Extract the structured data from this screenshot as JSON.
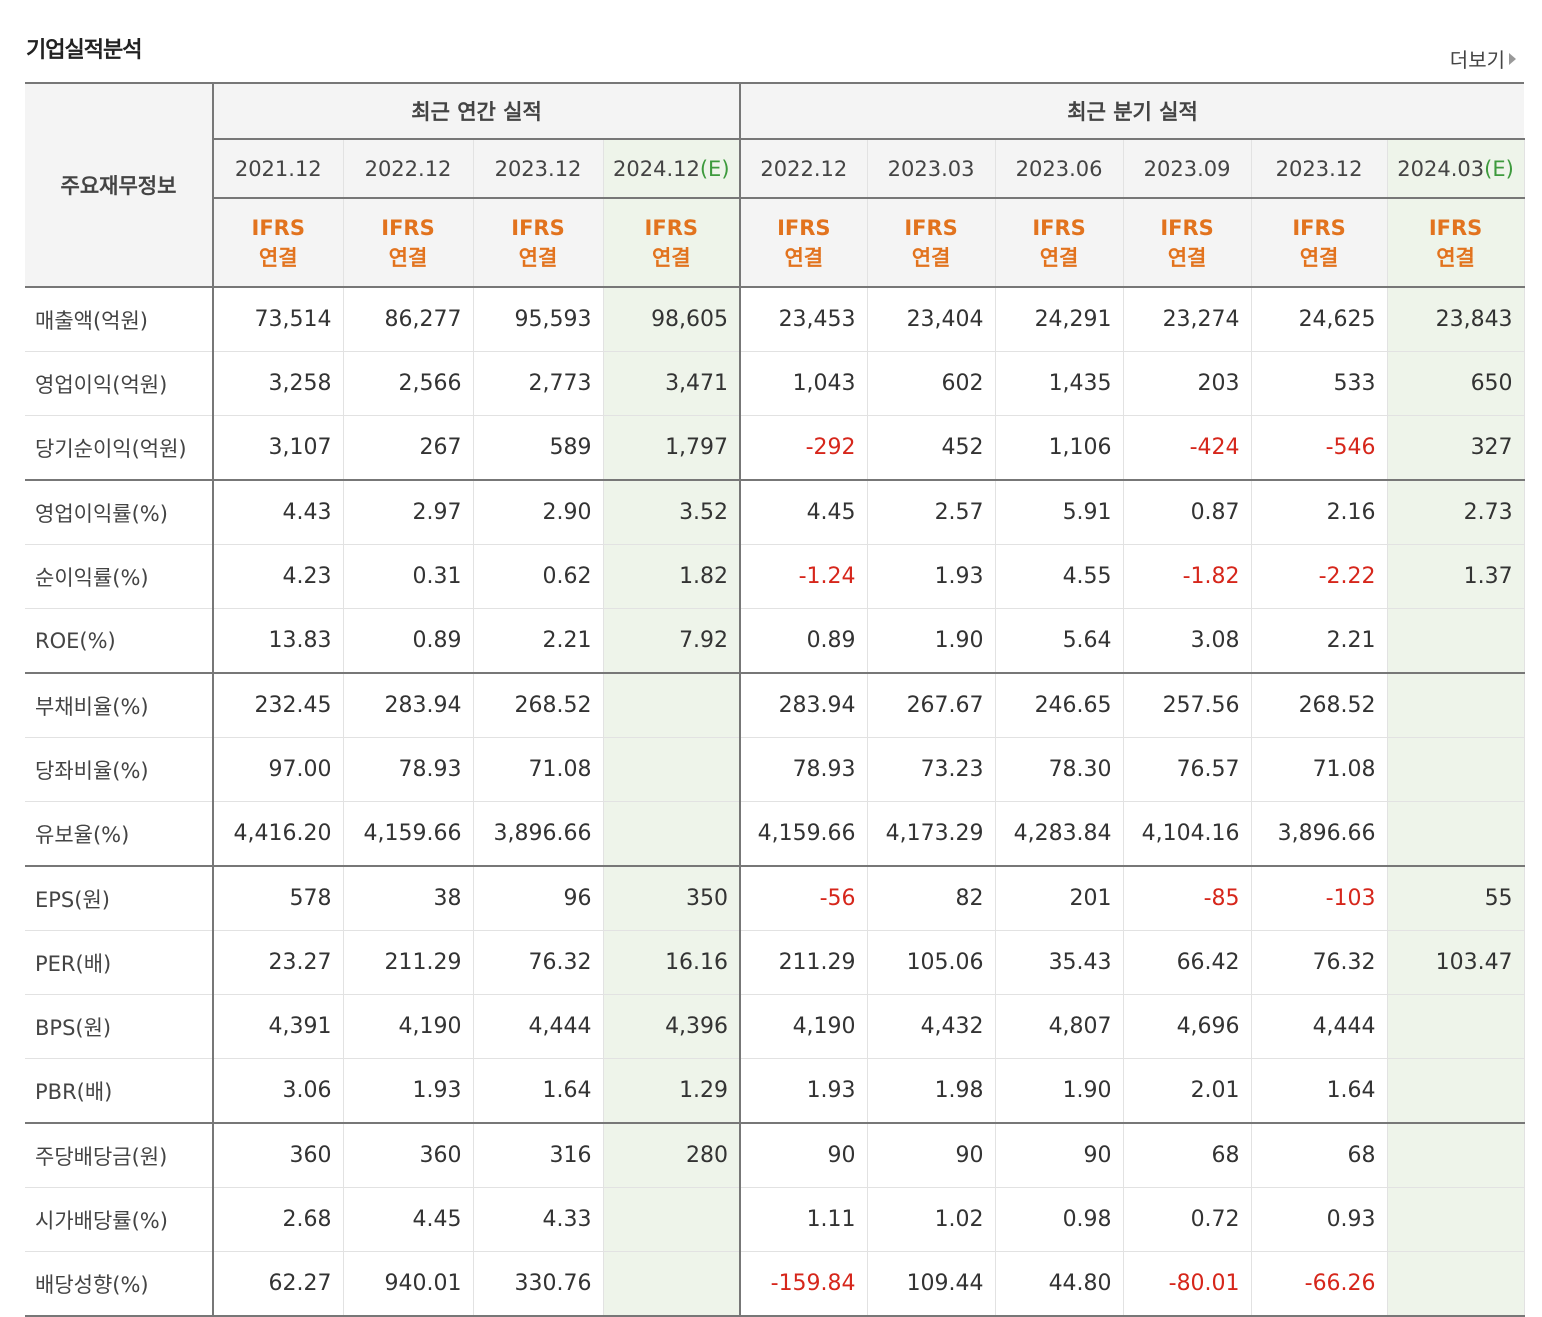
{
  "title": "기업실적분석",
  "more_label": "더보기",
  "header": {
    "row_label": "주요재무정보",
    "annual_group": "최근 연간 실적",
    "quarter_group": "최근 분기 실적",
    "estimate_mark": "(E)",
    "ifrs_line1": "IFRS",
    "ifrs_line2": "연결",
    "annual_periods": [
      {
        "period": "2021.12",
        "estimate": false
      },
      {
        "period": "2022.12",
        "estimate": false
      },
      {
        "period": "2023.12",
        "estimate": false
      },
      {
        "period": "2024.12",
        "estimate": true
      }
    ],
    "quarter_periods": [
      {
        "period": "2022.12",
        "estimate": false
      },
      {
        "period": "2023.03",
        "estimate": false
      },
      {
        "period": "2023.06",
        "estimate": false
      },
      {
        "period": "2023.09",
        "estimate": false
      },
      {
        "period": "2023.12",
        "estimate": false
      },
      {
        "period": "2024.03",
        "estimate": true
      }
    ]
  },
  "rows": [
    {
      "label": "매출액(억원)",
      "values": [
        "73,514",
        "86,277",
        "95,593",
        "98,605",
        "23,453",
        "23,404",
        "24,291",
        "23,274",
        "24,625",
        "23,843"
      ],
      "group_end": false
    },
    {
      "label": "영업이익(억원)",
      "values": [
        "3,258",
        "2,566",
        "2,773",
        "3,471",
        "1,043",
        "602",
        "1,435",
        "203",
        "533",
        "650"
      ],
      "group_end": false
    },
    {
      "label": "당기순이익(억원)",
      "values": [
        "3,107",
        "267",
        "589",
        "1,797",
        "-292",
        "452",
        "1,106",
        "-424",
        "-546",
        "327"
      ],
      "group_end": true
    },
    {
      "label": "영업이익률(%)",
      "values": [
        "4.43",
        "2.97",
        "2.90",
        "3.52",
        "4.45",
        "2.57",
        "5.91",
        "0.87",
        "2.16",
        "2.73"
      ],
      "group_end": false
    },
    {
      "label": "순이익률(%)",
      "values": [
        "4.23",
        "0.31",
        "0.62",
        "1.82",
        "-1.24",
        "1.93",
        "4.55",
        "-1.82",
        "-2.22",
        "1.37"
      ],
      "group_end": false
    },
    {
      "label": "ROE(%)",
      "values": [
        "13.83",
        "0.89",
        "2.21",
        "7.92",
        "0.89",
        "1.90",
        "5.64",
        "3.08",
        "2.21",
        ""
      ],
      "group_end": true
    },
    {
      "label": "부채비율(%)",
      "values": [
        "232.45",
        "283.94",
        "268.52",
        "",
        "283.94",
        "267.67",
        "246.65",
        "257.56",
        "268.52",
        ""
      ],
      "group_end": false
    },
    {
      "label": "당좌비율(%)",
      "values": [
        "97.00",
        "78.93",
        "71.08",
        "",
        "78.93",
        "73.23",
        "78.30",
        "76.57",
        "71.08",
        ""
      ],
      "group_end": false
    },
    {
      "label": "유보율(%)",
      "values": [
        "4,416.20",
        "4,159.66",
        "3,896.66",
        "",
        "4,159.66",
        "4,173.29",
        "4,283.84",
        "4,104.16",
        "3,896.66",
        ""
      ],
      "group_end": true
    },
    {
      "label": "EPS(원)",
      "values": [
        "578",
        "38",
        "96",
        "350",
        "-56",
        "82",
        "201",
        "-85",
        "-103",
        "55"
      ],
      "group_end": false
    },
    {
      "label": "PER(배)",
      "values": [
        "23.27",
        "211.29",
        "76.32",
        "16.16",
        "211.29",
        "105.06",
        "35.43",
        "66.42",
        "76.32",
        "103.47"
      ],
      "group_end": false
    },
    {
      "label": "BPS(원)",
      "values": [
        "4,391",
        "4,190",
        "4,444",
        "4,396",
        "4,190",
        "4,432",
        "4,807",
        "4,696",
        "4,444",
        ""
      ],
      "group_end": false
    },
    {
      "label": "PBR(배)",
      "values": [
        "3.06",
        "1.93",
        "1.64",
        "1.29",
        "1.93",
        "1.98",
        "1.90",
        "2.01",
        "1.64",
        ""
      ],
      "group_end": true
    },
    {
      "label": "주당배당금(원)",
      "values": [
        "360",
        "360",
        "316",
        "280",
        "90",
        "90",
        "90",
        "68",
        "68",
        ""
      ],
      "group_end": false
    },
    {
      "label": "시가배당률(%)",
      "values": [
        "2.68",
        "4.45",
        "4.33",
        "",
        "1.11",
        "1.02",
        "0.98",
        "0.72",
        "0.93",
        ""
      ],
      "group_end": false
    },
    {
      "label": "배당성향(%)",
      "values": [
        "62.27",
        "940.01",
        "330.76",
        "",
        "-159.84",
        "109.44",
        "44.80",
        "-80.01",
        "-66.26",
        ""
      ],
      "group_end": true
    }
  ],
  "colors": {
    "negative": "#d6261b",
    "ifrs": "#e2731e",
    "estimate": "#3d9a3d",
    "estimate_bg": "#eef4ea"
  }
}
